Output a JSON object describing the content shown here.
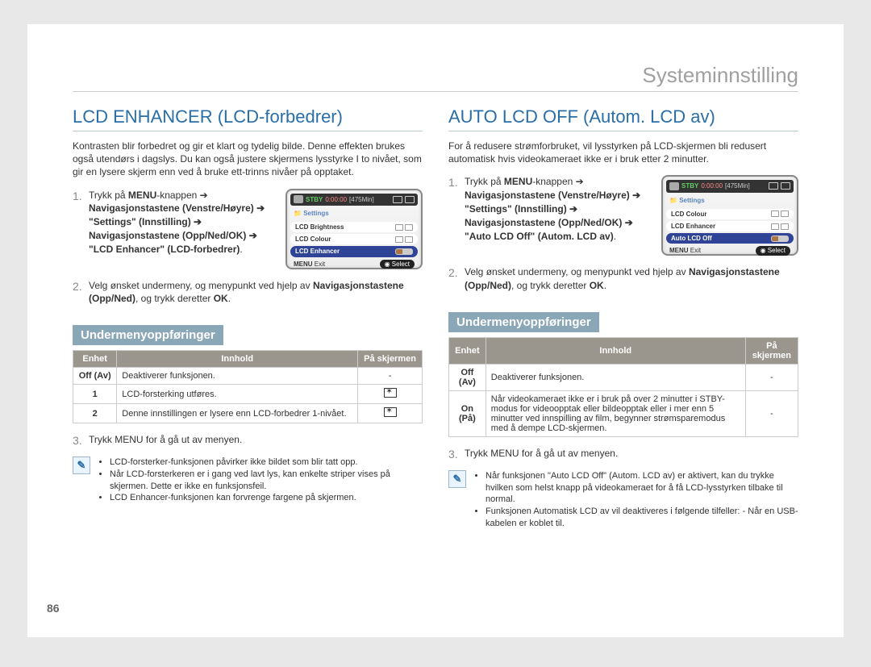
{
  "breadcrumb": "Systeminnstilling",
  "page_number": "86",
  "common": {
    "menu_label": "MENU",
    "exit_label": "Exit",
    "select_label": "Select",
    "settings_label": "Settings",
    "stby": "STBY",
    "rec_time": "0:00:00",
    "remain": "[475Min]",
    "submenu_heading": "Undermenyoppføringer",
    "th_unit": "Enhet",
    "th_content": "Innhold",
    "th_onscreen": "På skjermen",
    "exit_step": "Trykk MENU for å gå ut av menyen.",
    "note_glyph": "✎"
  },
  "left": {
    "title": "LCD ENHANCER (LCD-forbedrer)",
    "intro": "Kontrasten blir forbedret og gir et klart og tydelig bilde. Denne effekten brukes også utendørs i dagslys. Du kan også justere skjermens lysstyrke I to nivået, som gir en lysere skjerm enn ved å bruke ett-trinns nivåer på opptaket.",
    "step1_pre": "Trykk på ",
    "step1_mid": "-knappen ➔ ",
    "step1_bold": "Navigasjonstastene (Venstre/Høyre) ➔ \"Settings\" (Innstilling) ➔ Navigasjonstastene (Opp/Ned/OK) ➔ \"LCD Enhancer\" (LCD-forbedrer)",
    "step1_post": ".",
    "step2_a": "Velg ønsket undermeny, og menypunkt ved hjelp av ",
    "step2_b": "Navigasjonstastene (Opp/Ned)",
    "step2_c": ", og trykk deretter ",
    "step2_d": "OK",
    "step2_e": ".",
    "lcd_rows": [
      "LCD Brightness",
      "LCD Colour",
      "LCD Enhancer"
    ],
    "table_rows": [
      {
        "unit": "Off (Av)",
        "content": "Deaktiverer funksjonen.",
        "icon": false,
        "dash": true
      },
      {
        "unit": "1",
        "content": "LCD-forsterking utføres.",
        "icon": true
      },
      {
        "unit": "2",
        "content": "Denne innstillingen er lysere enn LCD-forbedrer 1-nivået.",
        "icon": true
      }
    ],
    "notes": [
      "LCD-forsterker-funksjonen påvirker ikke bildet som blir tatt opp.",
      "Når LCD-forsterkeren er i gang ved lavt lys, kan enkelte striper vises på skjermen. Dette er ikke en funksjonsfeil.",
      "LCD Enhancer-funksjonen kan forvrenge fargene på skjermen."
    ]
  },
  "right": {
    "title": "AUTO LCD OFF (Autom. LCD av)",
    "intro": "For å redusere strømforbruket, vil lysstyrken på LCD-skjermen bli redusert automatisk hvis videokameraet ikke er i bruk etter 2 minutter.",
    "step1_pre": "Trykk på ",
    "step1_mid": "-knappen ➔ ",
    "step1_bold": "Navigasjonstastene (Venstre/Høyre) ➔ \"Settings\" (Innstilling) ➔ Navigasjonstastene (Opp/Ned/OK) ➔ \"Auto LCD Off\" (Autom. LCD av)",
    "step1_post": ".",
    "step2_a": "Velg ønsket undermeny, og menypunkt ved hjelp av ",
    "step2_b": "Navigasjonstastene (Opp/Ned)",
    "step2_c": ", og trykk deretter ",
    "step2_d": "OK",
    "step2_e": ".",
    "lcd_rows": [
      "LCD Colour",
      "LCD Enhancer",
      "Auto LCD Off"
    ],
    "table_rows": [
      {
        "unit": "Off (Av)",
        "content": "Deaktiverer funksjonen.",
        "dash": true
      },
      {
        "unit": "On (På)",
        "content": "Når videokameraet ikke er i bruk på over 2 minutter i STBY-modus for videoopptak eller bildeopptak eller i mer enn 5 minutter ved innspilling av film, begynner strømsparemodus med å dempe LCD-skjermen.",
        "dash": true
      }
    ],
    "notes": [
      "Når funksjonen \"Auto LCD Off\" (Autom. LCD av) er aktivert, kan du trykke hvilken som helst knapp på videokameraet for å få LCD-lysstyrken tilbake til normal.",
      "Funksjonen Automatisk LCD av vil deaktiveres i følgende tilfeller:\n- Når en USB-kabelen er koblet til."
    ]
  }
}
